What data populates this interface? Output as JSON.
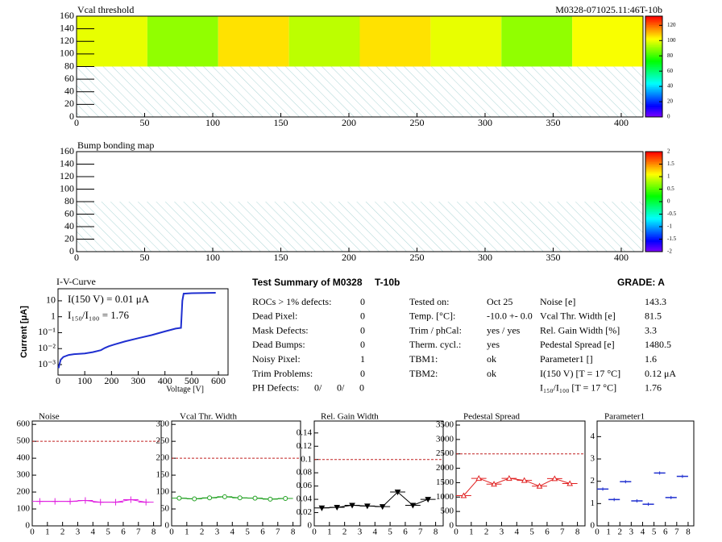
{
  "chart_data": [
    {
      "type": "heatmap",
      "title": "Vcal threshold",
      "subtitle": "M0328-071025.11:46T-10b",
      "xlim": [
        0,
        416
      ],
      "ylim": [
        0,
        160
      ],
      "xticks": [
        0,
        50,
        100,
        150,
        200,
        250,
        300,
        350,
        400
      ],
      "yticks": [
        0,
        20,
        40,
        60,
        80,
        100,
        120,
        140,
        160
      ],
      "xbins": [
        0,
        52,
        104,
        156,
        208,
        260,
        312,
        364,
        416
      ],
      "ybins": [
        80,
        160
      ],
      "values": [
        [
          100,
          90,
          106,
          95,
          106,
          100,
          90,
          102
        ]
      ],
      "hatch_ylim": [
        0,
        80
      ],
      "zlim": [
        0,
        132
      ],
      "zticks": [
        0,
        20,
        40,
        60,
        80,
        100,
        120
      ]
    },
    {
      "type": "heatmap",
      "title": "Bump bonding map",
      "xlim": [
        0,
        416
      ],
      "ylim": [
        0,
        160
      ],
      "xticks": [
        0,
        50,
        100,
        150,
        200,
        250,
        300,
        350,
        400
      ],
      "yticks": [
        0,
        20,
        40,
        60,
        80,
        100,
        120,
        140,
        160
      ],
      "xbins": [
        0,
        52,
        104,
        156,
        208,
        260,
        312,
        364,
        416
      ],
      "ybins": [
        80,
        160
      ],
      "values": [],
      "hatch_ylim": [
        0,
        80
      ],
      "zlim": [
        -2,
        2
      ],
      "zticks": [
        -2,
        -1.5,
        -1,
        -0.5,
        0,
        0.5,
        1,
        1.5,
        2
      ]
    },
    {
      "type": "line",
      "title": "I-V-Curve",
      "x_label": "Voltage [V]",
      "y_label": "Current [μA]",
      "annotations": [
        "I(150 V) = 0.01 μA",
        "I₁₅₀/I₁₀₀ =  1.76"
      ],
      "log_y": true,
      "color": "#1f2fd0",
      "xlim": [
        0,
        636
      ],
      "ylim": [
        0.00022,
        57
      ],
      "xticks": [
        0,
        100,
        200,
        300,
        400,
        500,
        600
      ],
      "yticks": [
        {
          "value": 0.001,
          "label": "10⁻³"
        },
        {
          "value": 0.01,
          "label": "10⁻²"
        },
        {
          "value": 0.1,
          "label": "10⁻¹"
        },
        1,
        10
      ],
      "x": [
        2,
        5,
        10,
        20,
        40,
        60,
        100,
        130,
        160,
        175,
        190,
        210,
        250,
        300,
        350,
        400,
        440,
        460,
        465,
        470,
        500,
        550,
        590
      ],
      "values": [
        0.0006,
        0.001,
        0.002,
        0.003,
        0.004,
        0.0045,
        0.005,
        0.006,
        0.008,
        0.011,
        0.014,
        0.018,
        0.028,
        0.045,
        0.07,
        0.12,
        0.18,
        0.2,
        10,
        28,
        30,
        31,
        32
      ]
    },
    {
      "type": "roc",
      "title": "Noise",
      "color": "#e020e0",
      "marker": "plus",
      "connect": true,
      "ref": 500,
      "ref_color": "#c02020",
      "xlim": [
        0,
        8.5
      ],
      "ylim": [
        0,
        620
      ],
      "xticks": [
        0,
        1,
        2,
        3,
        4,
        5,
        6,
        7,
        8
      ],
      "yticks": [
        0,
        100,
        200,
        300,
        400,
        500,
        600
      ],
      "x": [
        0.5,
        1.5,
        2.5,
        3.5,
        4.5,
        5.5,
        6.5,
        7.5
      ],
      "xerr": 0.5,
      "values": [
        145,
        145,
        145,
        150,
        140,
        140,
        155,
        140
      ]
    },
    {
      "type": "roc",
      "title": "Vcal Thr. Width",
      "color": "#20a020",
      "marker": "circle",
      "connect": true,
      "ref": 200,
      "ref_color": "#c02020",
      "xlim": [
        0,
        8.5
      ],
      "ylim": [
        0,
        310
      ],
      "xticks": [
        0,
        1,
        2,
        3,
        4,
        5,
        6,
        7,
        8
      ],
      "yticks": [
        0,
        50,
        100,
        150,
        200,
        250,
        300
      ],
      "x": [
        0.5,
        1.5,
        2.5,
        3.5,
        4.5,
        5.5,
        6.5,
        7.5
      ],
      "xerr": 0.5,
      "values": [
        82,
        80,
        83,
        86,
        83,
        82,
        79,
        81
      ]
    },
    {
      "type": "roc",
      "title": "Rel. Gain Width",
      "color": "#000000",
      "marker": "triangle-down",
      "connect": true,
      "ref": 0.1,
      "ref_color": "#c02020",
      "xlim": [
        0,
        8.5
      ],
      "ylim": [
        0,
        0.158
      ],
      "xticks": [
        0,
        1,
        2,
        3,
        4,
        5,
        6,
        7,
        8
      ],
      "yticks": [
        0,
        0.02,
        0.04,
        0.06,
        0.08,
        0.1,
        0.12,
        0.14
      ],
      "x": [
        0.5,
        1.5,
        2.5,
        3.5,
        4.5,
        5.5,
        6.5,
        7.5
      ],
      "xerr": 0.5,
      "values": [
        0.027,
        0.028,
        0.031,
        0.03,
        0.029,
        0.051,
        0.031,
        0.04
      ]
    },
    {
      "type": "roc",
      "title": "Pedestal Spread",
      "color": "#e02020",
      "marker": "triangle",
      "connect": true,
      "ref": 2500,
      "ref_color": "#c02020",
      "xlim": [
        0,
        8.5
      ],
      "ylim": [
        0,
        3640
      ],
      "xticks": [
        0,
        1,
        2,
        3,
        4,
        5,
        6,
        7,
        8
      ],
      "yticks": [
        0,
        500,
        1000,
        1500,
        2000,
        2500,
        3000,
        3500
      ],
      "x": [
        0.5,
        1.5,
        2.5,
        3.5,
        4.5,
        5.5,
        6.5,
        7.5
      ],
      "xerr": 0.5,
      "values": [
        1050,
        1650,
        1450,
        1650,
        1580,
        1380,
        1640,
        1470
      ]
    },
    {
      "type": "roc",
      "title": "Parameter1",
      "color": "#2030d0",
      "marker": "dash",
      "connect": false,
      "xlim": [
        0,
        8.5
      ],
      "ylim": [
        0,
        4.7
      ],
      "xticks": [
        0,
        1,
        2,
        3,
        4,
        5,
        6,
        7,
        8
      ],
      "yticks": [
        0,
        1,
        2,
        3,
        4
      ],
      "x": [
        0.5,
        1.5,
        2.5,
        3.5,
        4.5,
        5.5,
        6.5,
        7.5
      ],
      "xerr": 0.5,
      "values": [
        1.65,
        1.18,
        1.98,
        1.12,
        0.97,
        2.37,
        1.27,
        2.22
      ]
    }
  ],
  "summary": {
    "title": "Test Summary of M0328",
    "module_type": "T-10b",
    "grade": "GRADE:  A",
    "defects": [
      [
        "ROCs > 1% defects:",
        "0"
      ],
      [
        "Dead Pixel:",
        "0"
      ],
      [
        "Mask Defects:",
        "0"
      ],
      [
        "Dead Bumps:",
        "0"
      ],
      [
        "Noisy Pixel:",
        "1"
      ],
      [
        "Trim Problems:",
        "0"
      ]
    ],
    "ph_defects": {
      "label": "PH Defects:",
      "values": [
        "0/",
        "0/",
        "0"
      ],
      "colors": [
        "#000000",
        "#e02020",
        "#2030d0"
      ]
    },
    "conditions": [
      [
        "Tested on:",
        "Oct 25"
      ],
      [
        "Temp. [°C]:",
        "-10.0 +- 0.0"
      ],
      [
        "Trim / phCal:",
        "yes / yes"
      ],
      [
        "Therm. cycl.:",
        "yes"
      ],
      [
        "TBM1:",
        "ok"
      ],
      [
        "TBM2:",
        "ok"
      ]
    ],
    "results": [
      [
        "Noise [e]",
        "143.3"
      ],
      [
        "Vcal Thr. Width [e]",
        "81.5"
      ],
      [
        "Rel. Gain Width [%]",
        "3.3"
      ],
      [
        "Pedestal Spread [e]",
        "1480.5"
      ],
      [
        "Parameter1 []",
        "1.6"
      ],
      [
        "I(150 V) [T = 17 °C]",
        "0.12 μA"
      ],
      [
        "I₁₅₀/I₁₀₀  [T = 17 °C]",
        "1.76"
      ]
    ]
  }
}
